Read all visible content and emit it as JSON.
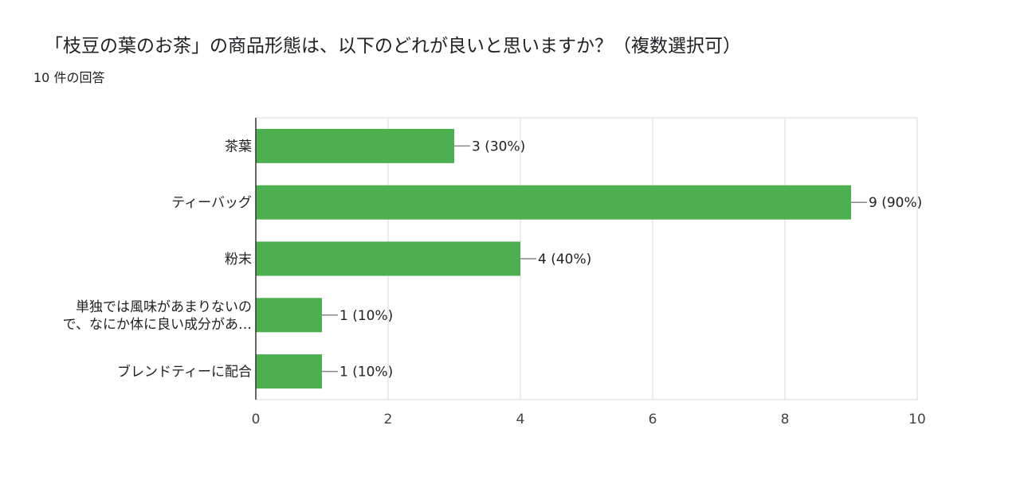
{
  "header": {
    "title": "「枝豆の葉のお茶」の商品形態は、以下のどれが良いと思いますか？（複数選択可）",
    "response_count": "10 件の回答"
  },
  "chart_data": {
    "type": "bar",
    "orientation": "horizontal",
    "categories": [
      [
        "茶葉"
      ],
      [
        "ティーバッグ"
      ],
      [
        "粉末"
      ],
      [
        "単独では風味があまりないの",
        "で、なにか体に良い成分があ…"
      ],
      [
        "ブレンドティーに配合"
      ]
    ],
    "values": [
      3,
      9,
      4,
      1,
      1
    ],
    "data_labels": [
      "3 (30%)",
      "9 (90%)",
      "4 (40%)",
      "1 (10%)",
      "1 (10%)"
    ],
    "xticks": [
      "0",
      "2",
      "4",
      "6",
      "8",
      "10"
    ],
    "xlim": [
      0,
      10
    ],
    "grid": true,
    "colors": {
      "bar": "#4caf50",
      "grid": "#e6e6e6",
      "axis": "#333333",
      "leader": "#888888"
    }
  }
}
